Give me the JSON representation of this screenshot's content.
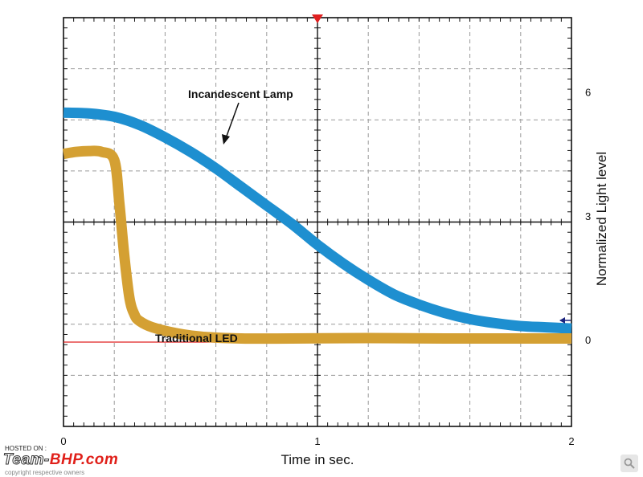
{
  "watermark": {
    "hosted_on": "HOSTED ON :",
    "logo_part1": "Team-",
    "logo_part2": "BHP.com",
    "copyright": "copyright respective owners"
  },
  "zoom_icon": "magnifier-icon",
  "chart_data": {
    "type": "line",
    "xlabel": "Time in sec.",
    "ylabel": "Normalized  Light level",
    "x_ticks": [
      "0",
      "1",
      "2"
    ],
    "y_ticks": [
      "0",
      "3",
      "6"
    ],
    "xlim": [
      0,
      2
    ],
    "ylim": [
      -2.1,
      7.8
    ],
    "grid": true,
    "series": [
      {
        "name": "Incandescent Lamp",
        "color": "#1e8fd0",
        "x": [
          0,
          0.1,
          0.2,
          0.3,
          0.4,
          0.5,
          0.6,
          0.7,
          0.8,
          0.9,
          1.0,
          1.1,
          1.2,
          1.3,
          1.4,
          1.5,
          1.6,
          1.7,
          1.8,
          1.9,
          2.0
        ],
        "y": [
          5.5,
          5.48,
          5.4,
          5.2,
          4.9,
          4.55,
          4.15,
          3.7,
          3.25,
          2.8,
          2.3,
          1.85,
          1.45,
          1.1,
          0.85,
          0.65,
          0.5,
          0.4,
          0.33,
          0.3,
          0.27
        ]
      },
      {
        "name": "Traditional LED",
        "color": "#d4a033",
        "x": [
          0,
          0.05,
          0.1,
          0.15,
          0.2,
          0.22,
          0.24,
          0.26,
          0.28,
          0.3,
          0.35,
          0.45,
          0.55,
          0.7,
          0.9,
          1.2,
          1.5,
          2.0
        ],
        "y": [
          4.5,
          4.55,
          4.57,
          4.55,
          4.35,
          3.3,
          2.0,
          1.0,
          0.6,
          0.45,
          0.3,
          0.15,
          0.07,
          0.03,
          0.03,
          0.04,
          0.03,
          0.03
        ]
      }
    ],
    "annotations": [
      {
        "text": "Incandescent Lamp",
        "arrow": true
      },
      {
        "text": "Traditional LED",
        "arrow": false
      }
    ]
  }
}
